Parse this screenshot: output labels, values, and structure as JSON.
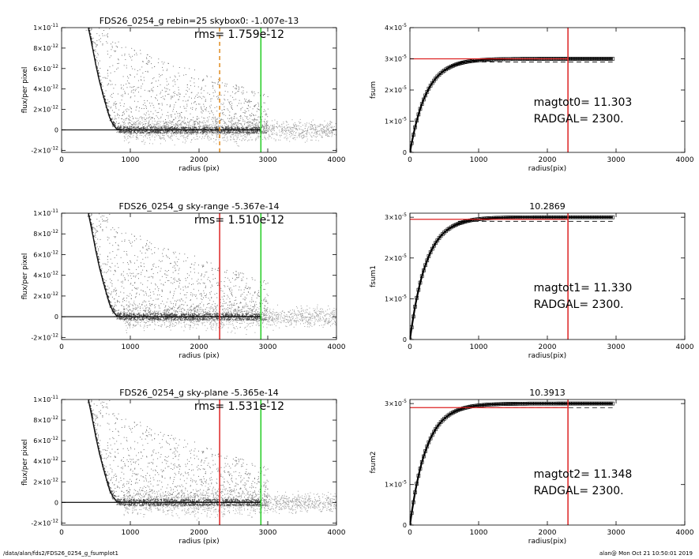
{
  "footer": {
    "path": "/data/alan/fds2/FDS26_0254_g_fsumplot1",
    "stamp": "alan@  Mon Oct 21 10:50:01 2019"
  },
  "chart_data": [
    {
      "type": "scatter",
      "title": "FDS26_0254_g rebin=25    skybox0: -1.007e-13",
      "annotation": "rms= 1.759e-12",
      "xlabel": "radius (pix)",
      "ylabel": "flux/per pixel",
      "xlim": [
        0,
        4000
      ],
      "ylim": [
        -2.2e-12,
        1e-11
      ],
      "xticks": [
        0,
        1000,
        2000,
        3000,
        4000
      ],
      "yticks": [
        {
          "v": 1e-11,
          "m": "1×10",
          "e": "-11"
        },
        {
          "v": 8e-12,
          "m": "8×10",
          "e": "-12"
        },
        {
          "v": 6e-12,
          "m": "6×10",
          "e": "-12"
        },
        {
          "v": 4e-12,
          "m": "4×10",
          "e": "-12"
        },
        {
          "v": 2e-12,
          "m": "2×10",
          "e": "-12"
        },
        {
          "v": 0,
          "m": "0",
          "e": ""
        },
        {
          "v": -2e-12,
          "m": "-2×10",
          "e": "-12"
        }
      ],
      "profile": [
        {
          "r": 390,
          "f": 1e-11
        },
        {
          "r": 450,
          "f": 8e-12
        },
        {
          "r": 500,
          "f": 6.3e-12
        },
        {
          "r": 550,
          "f": 4.8e-12
        },
        {
          "r": 600,
          "f": 3.5e-12
        },
        {
          "r": 650,
          "f": 2.3e-12
        },
        {
          "r": 700,
          "f": 1.2e-12
        },
        {
          "r": 750,
          "f": 5e-13
        },
        {
          "r": 800,
          "f": 1e-13
        },
        {
          "r": 900,
          "f": 0.0
        },
        {
          "r": 2900,
          "f": 0.0
        }
      ],
      "baseline_y": 0,
      "vlines": [
        {
          "x": 2300,
          "color": "#e08a1e",
          "style": "dashed"
        },
        {
          "x": 2900,
          "color": "#22cc22",
          "style": "solid"
        }
      ],
      "colors": {
        "dark": "#444444",
        "light": "#a0a0a0"
      }
    },
    {
      "type": "line",
      "title": "",
      "xlabel": "radius(pix)",
      "ylabel": "fsum",
      "xlim": [
        0,
        4000
      ],
      "ylim": [
        0,
        4e-05
      ],
      "xticks": [
        0,
        1000,
        2000,
        3000,
        4000
      ],
      "yticks": [
        {
          "v": 4e-05,
          "m": "4×10",
          "e": "-5"
        },
        {
          "v": 3e-05,
          "m": "3×10",
          "e": "-5"
        },
        {
          "v": 2e-05,
          "m": "2×10",
          "e": "-5"
        },
        {
          "v": 1e-05,
          "m": "1×10",
          "e": "-5"
        },
        {
          "v": 0,
          "m": "0",
          "e": ""
        }
      ],
      "curve": {
        "rmax": 2950,
        "asymptote": 3e-05,
        "dashed_level": 2.9e-05
      },
      "hline": {
        "y": 3e-05,
        "color": "#dd2222"
      },
      "vlines": [
        {
          "x": 2300,
          "color": "#dd2222",
          "style": "solid"
        }
      ],
      "text_lines": [
        "magtot0=  11.303",
        "RADGAL=   2300."
      ],
      "colors": {
        "curve": "#000000"
      }
    },
    {
      "type": "scatter",
      "title": "FDS26_0254_g sky-range -5.367e-14",
      "annotation": "rms= 1.510e-12",
      "xlabel": "radius (pix)",
      "ylabel": "flux/per pixel",
      "xlim": [
        0,
        4000
      ],
      "ylim": [
        -2.2e-12,
        1e-11
      ],
      "xticks": [
        0,
        1000,
        2000,
        3000,
        4000
      ],
      "yticks": [
        {
          "v": 1e-11,
          "m": "1×10",
          "e": "-11"
        },
        {
          "v": 8e-12,
          "m": "8×10",
          "e": "-12"
        },
        {
          "v": 6e-12,
          "m": "6×10",
          "e": "-12"
        },
        {
          "v": 4e-12,
          "m": "4×10",
          "e": "-12"
        },
        {
          "v": 2e-12,
          "m": "2×10",
          "e": "-12"
        },
        {
          "v": 0,
          "m": "0",
          "e": ""
        },
        {
          "v": -2e-12,
          "m": "-2×10",
          "e": "-12"
        }
      ],
      "profile": [
        {
          "r": 390,
          "f": 1e-11
        },
        {
          "r": 450,
          "f": 8e-12
        },
        {
          "r": 500,
          "f": 6.3e-12
        },
        {
          "r": 550,
          "f": 4.8e-12
        },
        {
          "r": 600,
          "f": 3.5e-12
        },
        {
          "r": 650,
          "f": 2.3e-12
        },
        {
          "r": 700,
          "f": 1.2e-12
        },
        {
          "r": 750,
          "f": 5e-13
        },
        {
          "r": 800,
          "f": 1e-13
        },
        {
          "r": 900,
          "f": 0.0
        },
        {
          "r": 2900,
          "f": 0.0
        }
      ],
      "baseline_y": 0,
      "vlines": [
        {
          "x": 2300,
          "color": "#dd2222",
          "style": "solid"
        },
        {
          "x": 2900,
          "color": "#22cc22",
          "style": "solid"
        }
      ],
      "colors": {
        "dark": "#444444",
        "light": "#a0a0a0"
      }
    },
    {
      "type": "line",
      "title": "10.2869",
      "xlabel": "radius(pix)",
      "ylabel": "fsum1",
      "xlim": [
        0,
        4000
      ],
      "ylim": [
        0,
        3.1e-05
      ],
      "xticks": [
        0,
        1000,
        2000,
        3000,
        4000
      ],
      "yticks": [
        {
          "v": 3e-05,
          "m": "3×10",
          "e": "-5"
        },
        {
          "v": 2e-05,
          "m": "2×10",
          "e": "-5"
        },
        {
          "v": 1e-05,
          "m": "1×10",
          "e": "-5"
        },
        {
          "v": 0,
          "m": "0",
          "e": ""
        }
      ],
      "curve": {
        "rmax": 2950,
        "asymptote": 3e-05,
        "dashed_level": 2.9e-05
      },
      "hline": {
        "y": 2.95e-05,
        "color": "#dd2222"
      },
      "vlines": [
        {
          "x": 2300,
          "color": "#dd2222",
          "style": "solid"
        }
      ],
      "text_lines": [
        "magtot1=  11.330",
        "RADGAL=   2300."
      ],
      "colors": {
        "curve": "#000000"
      }
    },
    {
      "type": "scatter",
      "title": "FDS26_0254_g sky-plane -5.365e-14",
      "annotation": "rms= 1.531e-12",
      "xlabel": "radius (pix)",
      "ylabel": "flux/per pixel",
      "xlim": [
        0,
        4000
      ],
      "ylim": [
        -2.2e-12,
        1e-11
      ],
      "xticks": [
        0,
        1000,
        2000,
        3000,
        4000
      ],
      "yticks": [
        {
          "v": 1e-11,
          "m": "1×10",
          "e": "-11"
        },
        {
          "v": 8e-12,
          "m": "8×10",
          "e": "-12"
        },
        {
          "v": 6e-12,
          "m": "6×10",
          "e": "-12"
        },
        {
          "v": 4e-12,
          "m": "4×10",
          "e": "-12"
        },
        {
          "v": 2e-12,
          "m": "2×10",
          "e": "-12"
        },
        {
          "v": 0,
          "m": "0",
          "e": ""
        },
        {
          "v": -2e-12,
          "m": "-2×10",
          "e": "-12"
        }
      ],
      "profile": [
        {
          "r": 390,
          "f": 1e-11
        },
        {
          "r": 450,
          "f": 8e-12
        },
        {
          "r": 500,
          "f": 6.3e-12
        },
        {
          "r": 550,
          "f": 4.8e-12
        },
        {
          "r": 600,
          "f": 3.5e-12
        },
        {
          "r": 650,
          "f": 2.3e-12
        },
        {
          "r": 700,
          "f": 1.2e-12
        },
        {
          "r": 750,
          "f": 5e-13
        },
        {
          "r": 800,
          "f": 1e-13
        },
        {
          "r": 900,
          "f": 0.0
        },
        {
          "r": 2900,
          "f": 0.0
        }
      ],
      "baseline_y": 0,
      "vlines": [
        {
          "x": 2300,
          "color": "#dd2222",
          "style": "solid"
        },
        {
          "x": 2900,
          "color": "#22cc22",
          "style": "solid"
        }
      ],
      "colors": {
        "dark": "#444444",
        "light": "#a0a0a0"
      }
    },
    {
      "type": "line",
      "title": "10.3913",
      "xlabel": "radius(pix)",
      "ylabel": "fsum2",
      "xlim": [
        0,
        4000
      ],
      "ylim": [
        0,
        3.1e-05
      ],
      "xticks": [
        0,
        1000,
        2000,
        3000,
        4000
      ],
      "yticks": [
        {
          "v": 3e-05,
          "m": "3×10",
          "e": "-5"
        },
        {
          "v": 1e-05,
          "m": "1×10",
          "e": "-5"
        },
        {
          "v": 0,
          "m": "0",
          "e": ""
        }
      ],
      "curve": {
        "rmax": 2950,
        "asymptote": 3e-05,
        "dashed_level": 2.9e-05
      },
      "hline": {
        "y": 2.9e-05,
        "color": "#dd2222"
      },
      "vlines": [
        {
          "x": 2300,
          "color": "#dd2222",
          "style": "solid"
        }
      ],
      "text_lines": [
        "magtot2=  11.348",
        "RADGAL=   2300."
      ],
      "colors": {
        "curve": "#000000"
      }
    }
  ]
}
